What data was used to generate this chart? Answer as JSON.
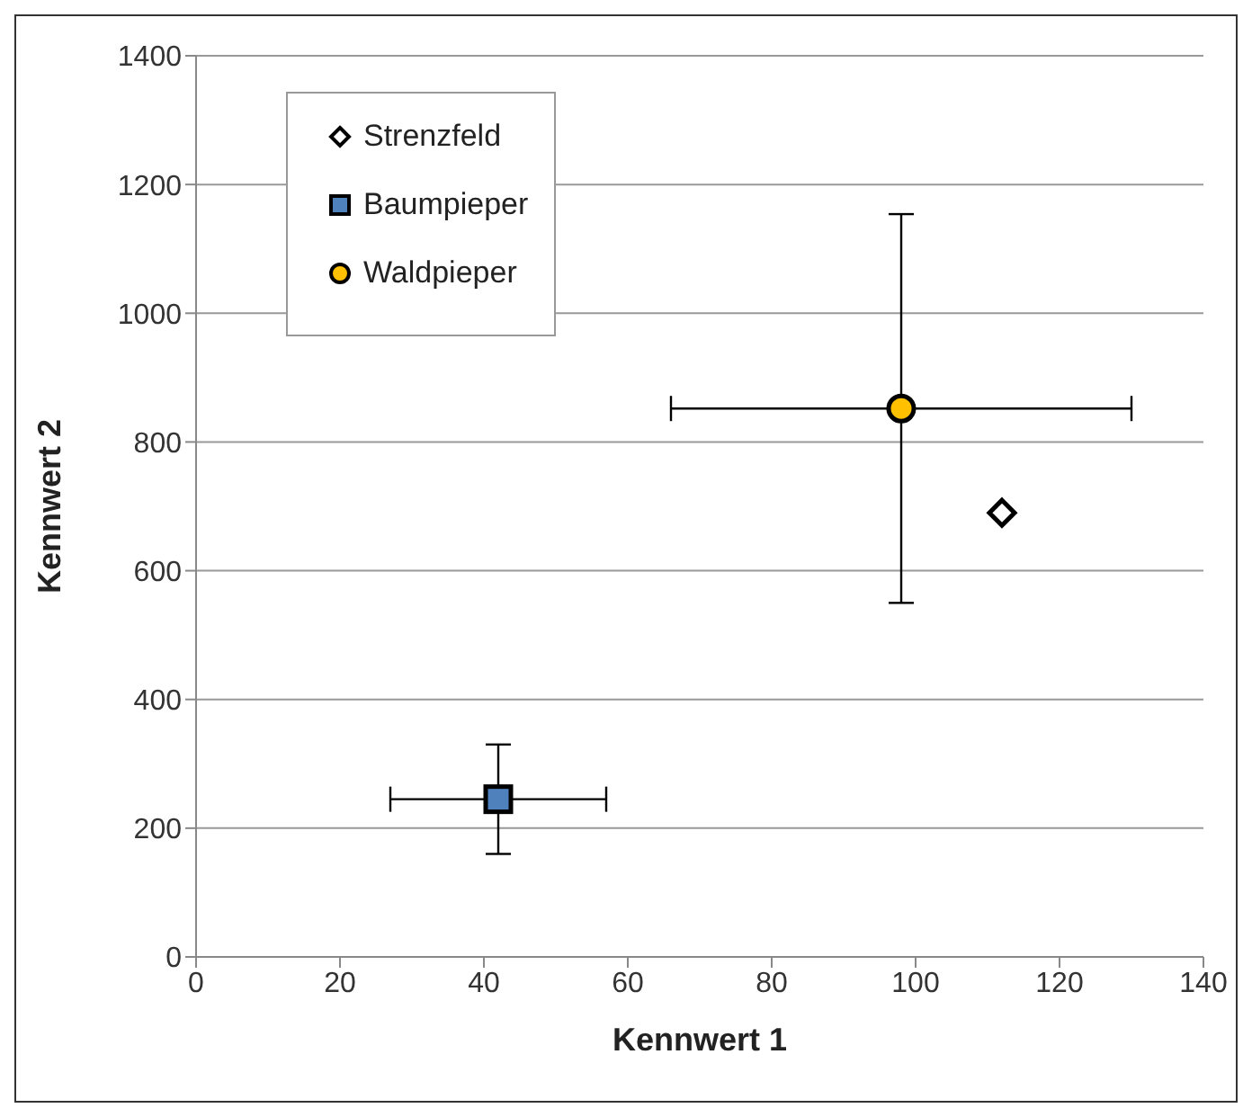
{
  "chart_data": {
    "type": "scatter",
    "xlabel": "Kennwert 1",
    "ylabel": "Kennwert 2",
    "xlim": [
      0,
      140
    ],
    "xticks": [
      0,
      20,
      40,
      60,
      80,
      100,
      120,
      140
    ],
    "ylim": [
      0,
      1400
    ],
    "yticks": [
      0,
      200,
      400,
      600,
      800,
      1000,
      1200,
      1400
    ],
    "grid": "y",
    "legend": "top left",
    "series": [
      {
        "name": "Strenzfeld",
        "color": "#ffffff",
        "marker": "diamond",
        "x": [
          112
        ],
        "values": [
          690
        ]
      },
      {
        "name": "Baumpieper",
        "color": "#4f81bd",
        "marker": "square",
        "x": [
          42
        ],
        "values": [
          245
        ],
        "errors": [
          85
        ],
        "xerrors": [
          15
        ]
      },
      {
        "name": "Waldpieper",
        "color": "#ffc000",
        "marker": "circle",
        "x": [
          98
        ],
        "values": [
          852
        ],
        "errors": [
          302
        ],
        "xerrors": [
          32
        ]
      }
    ]
  }
}
